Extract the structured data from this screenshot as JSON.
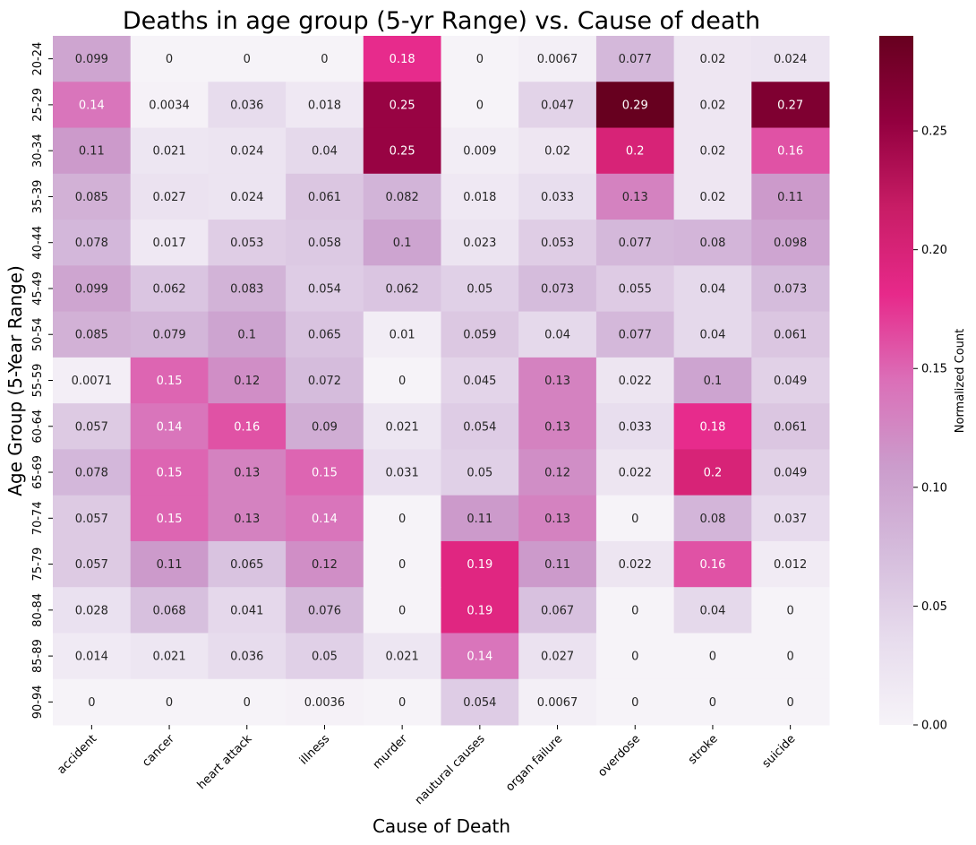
{
  "chart_data": {
    "type": "heatmap",
    "title": "Deaths in age group (5-yr Range) vs. Cause of death",
    "xlabel": "Cause of Death",
    "ylabel": "Age Group (5-Year Range)",
    "colorbar_label": "Normalized Count",
    "colorbar_ticks": [
      "0.00",
      "0.05",
      "0.10",
      "0.15",
      "0.20",
      "0.25"
    ],
    "vmin": 0,
    "vmax": 0.29,
    "x_categories": [
      "accident",
      "cancer",
      "heart attack",
      "illness",
      "murder",
      "nautural causes",
      "organ failure",
      "overdose",
      "stroke",
      "suicide"
    ],
    "y_categories": [
      "20-24",
      "25-29",
      "30-34",
      "35-39",
      "40-44",
      "45-49",
      "50-54",
      "55-59",
      "60-64",
      "65-69",
      "70-74",
      "75-79",
      "80-84",
      "85-89",
      "90-94"
    ],
    "values": [
      [
        0.099,
        0,
        0,
        0,
        0.18,
        0,
        0.0067,
        0.077,
        0.02,
        0.024
      ],
      [
        0.14,
        0.0034,
        0.036,
        0.018,
        0.25,
        0,
        0.047,
        0.29,
        0.02,
        0.27
      ],
      [
        0.11,
        0.021,
        0.024,
        0.04,
        0.25,
        0.009,
        0.02,
        0.2,
        0.02,
        0.16
      ],
      [
        0.085,
        0.027,
        0.024,
        0.061,
        0.082,
        0.018,
        0.033,
        0.13,
        0.02,
        0.11
      ],
      [
        0.078,
        0.017,
        0.053,
        0.058,
        0.1,
        0.023,
        0.053,
        0.077,
        0.08,
        0.098
      ],
      [
        0.099,
        0.062,
        0.083,
        0.054,
        0.062,
        0.05,
        0.073,
        0.055,
        0.04,
        0.073
      ],
      [
        0.085,
        0.079,
        0.1,
        0.065,
        0.01,
        0.059,
        0.04,
        0.077,
        0.04,
        0.061
      ],
      [
        0.0071,
        0.15,
        0.12,
        0.072,
        0,
        0.045,
        0.13,
        0.022,
        0.1,
        0.049
      ],
      [
        0.057,
        0.14,
        0.16,
        0.09,
        0.021,
        0.054,
        0.13,
        0.033,
        0.18,
        0.061
      ],
      [
        0.078,
        0.15,
        0.13,
        0.15,
        0.031,
        0.05,
        0.12,
        0.022,
        0.2,
        0.049
      ],
      [
        0.057,
        0.15,
        0.13,
        0.14,
        0,
        0.11,
        0.13,
        0,
        0.08,
        0.037
      ],
      [
        0.057,
        0.11,
        0.065,
        0.12,
        0,
        0.19,
        0.11,
        0.022,
        0.16,
        0.012
      ],
      [
        0.028,
        0.068,
        0.041,
        0.076,
        0,
        0.19,
        0.067,
        0,
        0.04,
        0
      ],
      [
        0.014,
        0.021,
        0.036,
        0.05,
        0.021,
        0.14,
        0.027,
        0,
        0,
        0
      ],
      [
        0,
        0,
        0,
        0.0036,
        0,
        0.054,
        0.0067,
        0,
        0,
        0
      ]
    ],
    "colormap": [
      "#f6f3f8",
      "#e7dced",
      "#d5bcdc",
      "#cb9ccc",
      "#db6fb8",
      "#e7298a",
      "#c81d66",
      "#93003f",
      "#67001f"
    ],
    "legend": "none"
  }
}
